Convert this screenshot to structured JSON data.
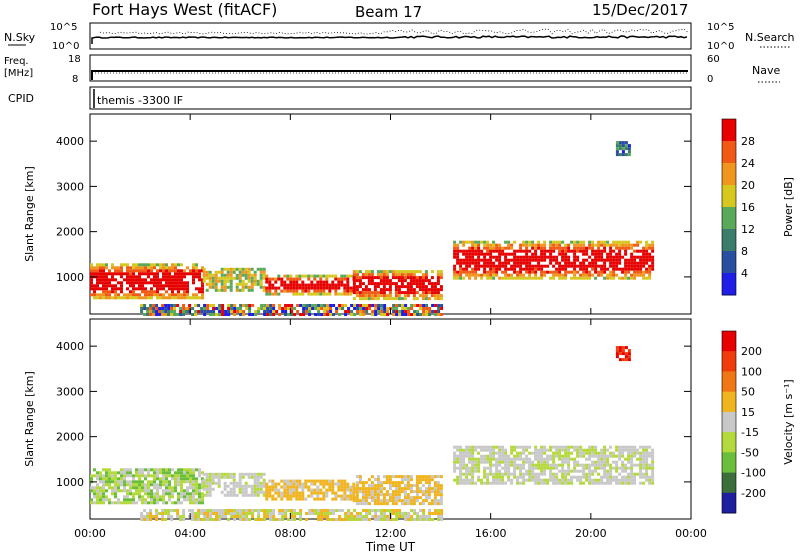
{
  "header": {
    "radar": "Fort Hays West (fitACF)",
    "beam": "Beam 17",
    "date": "15/Dec/2017"
  },
  "strips": {
    "nsky_label": "N.Sky",
    "nsky_ticks": [
      "10^5",
      "10^0"
    ],
    "nsearch_label": "N.Search",
    "nsearch_ticks": [
      "10^5",
      "10^0"
    ],
    "freq_label": "Freq.",
    "freq_unit": "[MHz]",
    "freq_ticks": [
      "18",
      "8"
    ],
    "nave_label": "Nave",
    "nave_ticks": [
      "60",
      "0"
    ],
    "cpid_label": "CPID",
    "cpid_value": "themis -3300 IF"
  },
  "chart_data": [
    {
      "type": "heatmap",
      "name": "power",
      "ylabel": "Slant Range [km]",
      "xlabel": "Time UT",
      "x_ticks": [
        "00:00",
        "04:00",
        "08:00",
        "12:00",
        "16:00",
        "20:00",
        "00:00"
      ],
      "y_ticks": [
        "1000",
        "2000",
        "3000",
        "4000"
      ],
      "xlim_hours": [
        0,
        24
      ],
      "ylim_km": [
        180,
        4600
      ],
      "colorbar_label": "Power [dB]",
      "colorbar_ticks": [
        "4",
        "8",
        "12",
        "16",
        "20",
        "24",
        "28"
      ],
      "colorbar_colors": [
        "#1e1ee6",
        "#2b4fa0",
        "#3c7c6b",
        "#5aa85a",
        "#d6c81e",
        "#f0961e",
        "#f05a14",
        "#e60000"
      ],
      "regions": [
        {
          "t0": 0.0,
          "t1": 4.5,
          "r0": 550,
          "r1": 1300,
          "level": "high"
        },
        {
          "t0": 4.5,
          "t1": 7.0,
          "r0": 700,
          "r1": 1200,
          "level": "mid"
        },
        {
          "t0": 7.0,
          "t1": 10.5,
          "r0": 650,
          "r1": 1050,
          "level": "high"
        },
        {
          "t0": 10.5,
          "t1": 14.0,
          "r0": 550,
          "r1": 1150,
          "level": "high"
        },
        {
          "t0": 14.5,
          "t1": 22.5,
          "r0": 1000,
          "r1": 1800,
          "level": "high"
        },
        {
          "t0": 2.0,
          "t1": 14.0,
          "r0": 200,
          "r1": 400,
          "level": "mixed"
        },
        {
          "t0": 21.0,
          "t1": 21.5,
          "r0": 3700,
          "r1": 4000,
          "level": "low"
        }
      ]
    },
    {
      "type": "heatmap",
      "name": "velocity",
      "ylabel": "Slant Range [km]",
      "xlabel": "Time UT",
      "x_ticks": [
        "00:00",
        "04:00",
        "08:00",
        "12:00",
        "16:00",
        "20:00",
        "00:00"
      ],
      "y_ticks": [
        "1000",
        "2000",
        "3000",
        "4000"
      ],
      "xlim_hours": [
        0,
        24
      ],
      "ylim_km": [
        180,
        4600
      ],
      "colorbar_label": "Velocity [m s⁻¹]",
      "colorbar_ticks": [
        "200",
        "100",
        "50",
        "15",
        "-15",
        "-50",
        "-100",
        "-200"
      ],
      "colorbar_colors": [
        "#1e1ea0",
        "#3c6e3c",
        "#6abe3c",
        "#b4d93c",
        "#c8c8c8",
        "#f0b41e",
        "#f07814",
        "#f03c0a",
        "#e60000"
      ],
      "regions": [
        {
          "t0": 0.0,
          "t1": 4.5,
          "r0": 550,
          "r1": 1300,
          "level": "green"
        },
        {
          "t0": 4.5,
          "t1": 7.0,
          "r0": 700,
          "r1": 1200,
          "level": "grey"
        },
        {
          "t0": 7.0,
          "t1": 10.5,
          "r0": 650,
          "r1": 1050,
          "level": "orange"
        },
        {
          "t0": 10.5,
          "t1": 14.0,
          "r0": 550,
          "r1": 1150,
          "level": "orange"
        },
        {
          "t0": 14.5,
          "t1": 22.5,
          "r0": 1000,
          "r1": 1800,
          "level": "grey"
        },
        {
          "t0": 2.0,
          "t1": 14.0,
          "r0": 200,
          "r1": 400,
          "level": "mixed"
        },
        {
          "t0": 21.0,
          "t1": 21.5,
          "r0": 3700,
          "r1": 4000,
          "level": "red"
        }
      ]
    }
  ]
}
